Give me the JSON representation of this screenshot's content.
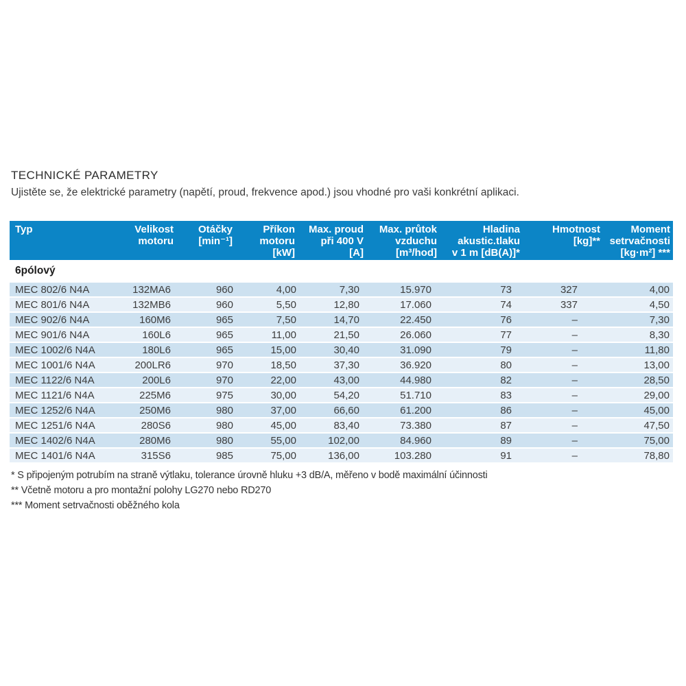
{
  "page": {
    "title": "TECHNICKÉ PARAMETRY",
    "subtitle": "Ujistěte se, že elektrické parametry (napětí, proud, frekvence apod.) jsou vhodné pro vaši konkrétní aplikaci."
  },
  "colors": {
    "header_bg": "#0c85c6",
    "header_text": "#ffffff",
    "row_odd": "#cde1f0",
    "row_even": "#e7f0f8",
    "body_text": "#3d3d3d"
  },
  "table": {
    "columns": [
      {
        "lines": [
          "Typ"
        ]
      },
      {
        "lines": [
          "Velikost",
          "motoru"
        ]
      },
      {
        "lines": [
          "Otáčky",
          "[min⁻¹]"
        ]
      },
      {
        "lines": [
          "Příkon",
          "motoru",
          "[kW]"
        ]
      },
      {
        "lines": [
          "Max. proud",
          "při 400 V",
          "[A]"
        ]
      },
      {
        "lines": [
          "Max. průtok",
          "vzduchu",
          "[m³/hod]"
        ]
      },
      {
        "lines": [
          "Hladina",
          "akustic.tlaku",
          "v 1 m [dB(A)]*"
        ]
      },
      {
        "lines": [
          "Hmotnost",
          "[kg]**"
        ]
      },
      {
        "lines": [
          "Moment",
          "setrvačnosti",
          "[kg·m²] ***"
        ]
      }
    ],
    "section": "6pólový",
    "rows": [
      [
        "MEC 802/6 N4A",
        "132MA6",
        "960",
        "4,00",
        "7,30",
        "15.970",
        "73",
        "327",
        "4,00"
      ],
      [
        "MEC 801/6 N4A",
        "132MB6",
        "960",
        "5,50",
        "12,80",
        "17.060",
        "74",
        "337",
        "4,50"
      ],
      [
        "MEC 902/6 N4A",
        "160M6",
        "965",
        "7,50",
        "14,70",
        "22.450",
        "76",
        "–",
        "7,30"
      ],
      [
        "MEC 901/6 N4A",
        "160L6",
        "965",
        "11,00",
        "21,50",
        "26.060",
        "77",
        "–",
        "8,30"
      ],
      [
        "MEC 1002/6 N4A",
        "180L6",
        "965",
        "15,00",
        "30,40",
        "31.090",
        "79",
        "–",
        "11,80"
      ],
      [
        "MEC 1001/6 N4A",
        "200LR6",
        "970",
        "18,50",
        "37,30",
        "36.920",
        "80",
        "–",
        "13,00"
      ],
      [
        "MEC 1122/6 N4A",
        "200L6",
        "970",
        "22,00",
        "43,00",
        "44.980",
        "82",
        "–",
        "28,50"
      ],
      [
        "MEC 1121/6 N4A",
        "225M6",
        "975",
        "30,00",
        "54,20",
        "51.710",
        "83",
        "–",
        "29,00"
      ],
      [
        "MEC 1252/6 N4A",
        "250M6",
        "980",
        "37,00",
        "66,60",
        "61.200",
        "86",
        "–",
        "45,00"
      ],
      [
        "MEC 1251/6 N4A",
        "280S6",
        "980",
        "45,00",
        "83,40",
        "73.380",
        "87",
        "–",
        "47,50"
      ],
      [
        "MEC 1402/6 N4A",
        "280M6",
        "980",
        "55,00",
        "102,00",
        "84.960",
        "89",
        "–",
        "75,00"
      ],
      [
        "MEC 1401/6 N4A",
        "315S6",
        "985",
        "75,00",
        "136,00",
        "103.280",
        "91",
        "–",
        "78,80"
      ]
    ]
  },
  "footnotes": [
    "* S připojeným potrubím na straně výtlaku, tolerance úrovně hluku +3 dB/A, měřeno v bodě maximální účinnosti",
    "** Včetně motoru a pro montažní polohy LG270 nebo RD270",
    "*** Moment setrvačnosti oběžného kola"
  ]
}
